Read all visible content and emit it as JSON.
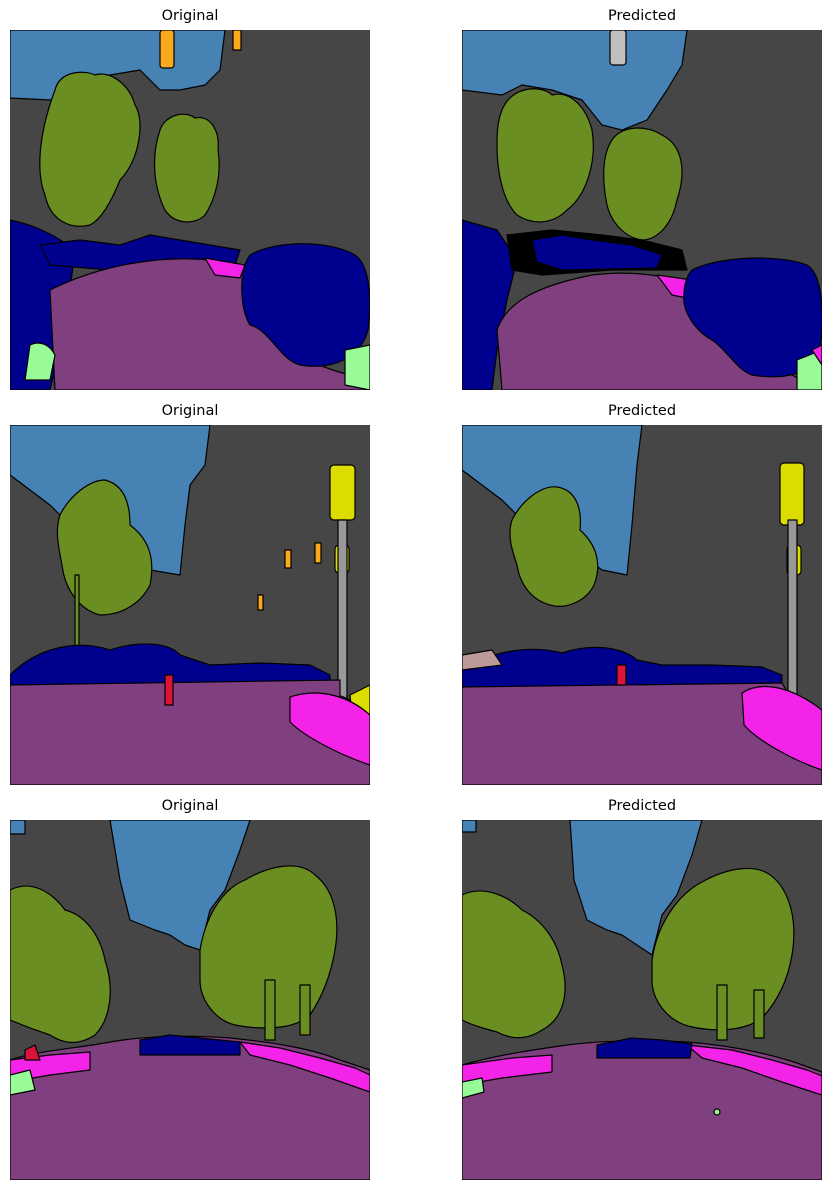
{
  "panels": [
    {
      "title": "Original"
    },
    {
      "title": "Predicted"
    },
    {
      "title": "Original"
    },
    {
      "title": "Predicted"
    },
    {
      "title": "Original"
    },
    {
      "title": "Predicted"
    }
  ],
  "palette": {
    "sky": "#4682b4",
    "building": "#464646",
    "vegetation": "#6b8e23",
    "road": "#804080",
    "sidewalk": "#f423e8",
    "car": "#00008e",
    "terrain": "#98fb98",
    "pole": "#999999",
    "traffic_sign": "#dcdc00",
    "traffic_light": "#faaa1e",
    "person": "#dc143c",
    "fence": "#be9999",
    "void": "#000000"
  }
}
